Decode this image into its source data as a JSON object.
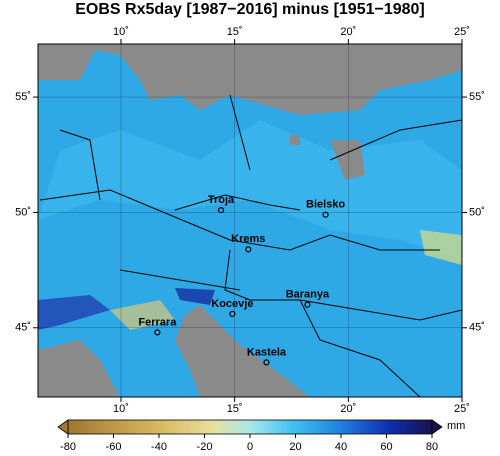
{
  "title": "EOBS Rx5day [1987−2016] minus [1951−1980]",
  "map": {
    "xlim": [
      6.35,
      25
    ],
    "ylim": [
      42.0,
      57.3
    ],
    "xticks": [
      {
        "value": 10,
        "label": "10˚"
      },
      {
        "value": 15,
        "label": "15˚"
      },
      {
        "value": 20,
        "label": "20˚"
      },
      {
        "value": 25,
        "label": "25˚"
      }
    ],
    "yticks": [
      {
        "value": 45,
        "label": "45˚"
      },
      {
        "value": 50,
        "label": "50˚"
      },
      {
        "value": 55,
        "label": "55˚"
      }
    ],
    "cities": [
      {
        "name": "Troja",
        "lon": 14.4,
        "lat": 50.1
      },
      {
        "name": "Bielsko",
        "lon": 19.0,
        "lat": 49.9
      },
      {
        "name": "Krems",
        "lon": 15.6,
        "lat": 48.4
      },
      {
        "name": "Baranya",
        "lon": 18.2,
        "lat": 46.0
      },
      {
        "name": "Kocevje",
        "lon": 14.9,
        "lat": 45.6
      },
      {
        "name": "Ferrara",
        "lon": 11.6,
        "lat": 44.8
      },
      {
        "name": "Kastela",
        "lon": 16.4,
        "lat": 43.5
      }
    ]
  },
  "colorbar": {
    "lim": [
      -80,
      80
    ],
    "ticks": [
      -80,
      -60,
      -40,
      -20,
      0,
      20,
      40,
      60,
      80
    ],
    "unit": "mm"
  }
}
